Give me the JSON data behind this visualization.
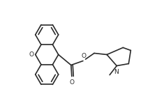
{
  "bg_color": "#ffffff",
  "line_color": "#2a2a2a",
  "line_width": 1.2,
  "figsize": [
    2.35,
    1.61
  ],
  "dpi": 100,
  "xlim": [
    -0.5,
    10.5
  ],
  "ylim": [
    -0.5,
    7.5
  ]
}
